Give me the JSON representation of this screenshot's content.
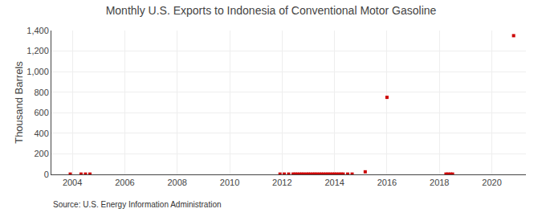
{
  "chart_data": {
    "type": "scatter",
    "title": "Monthly U.S. Exports to Indonesia of Conventional Motor Gasoline",
    "ylabel": "Thousand Barrels",
    "annotations": [
      "Source: U.S. Energy Information Administration"
    ],
    "x": [
      2003.92,
      2004.33,
      2004.5,
      2004.67,
      2011.92,
      2012.08,
      2012.25,
      2012.42,
      2012.5,
      2012.58,
      2012.67,
      2012.75,
      2012.83,
      2012.92,
      2013.0,
      2013.08,
      2013.17,
      2013.25,
      2013.33,
      2013.42,
      2013.5,
      2013.58,
      2013.67,
      2013.75,
      2013.83,
      2013.92,
      2014.0,
      2014.08,
      2014.17,
      2014.25,
      2014.33,
      2014.5,
      2014.67,
      2015.17,
      2016.0,
      2018.25,
      2018.33,
      2018.42,
      2018.5,
      2020.83
    ],
    "values": [
      3,
      3,
      3,
      3,
      3,
      3,
      3,
      3,
      3,
      3,
      3,
      3,
      3,
      3,
      3,
      3,
      3,
      3,
      3,
      3,
      3,
      3,
      3,
      3,
      3,
      3,
      3,
      3,
      3,
      3,
      3,
      3,
      3,
      25,
      750,
      3,
      3,
      3,
      3,
      1350
    ],
    "color": "#cc0000",
    "marker": "square",
    "xlim": [
      2003.2,
      2021.3
    ],
    "xticks": [
      2004,
      2006,
      2008,
      2010,
      2012,
      2014,
      2016,
      2018,
      2020
    ],
    "ylim": [
      0,
      1400
    ],
    "yticks": [
      0,
      200,
      400,
      600,
      800,
      {
        "value": 1000,
        "label": "1,000"
      },
      {
        "value": 1200,
        "label": "1,200"
      },
      {
        "value": 1400,
        "label": "1,400"
      }
    ],
    "grid": true
  }
}
